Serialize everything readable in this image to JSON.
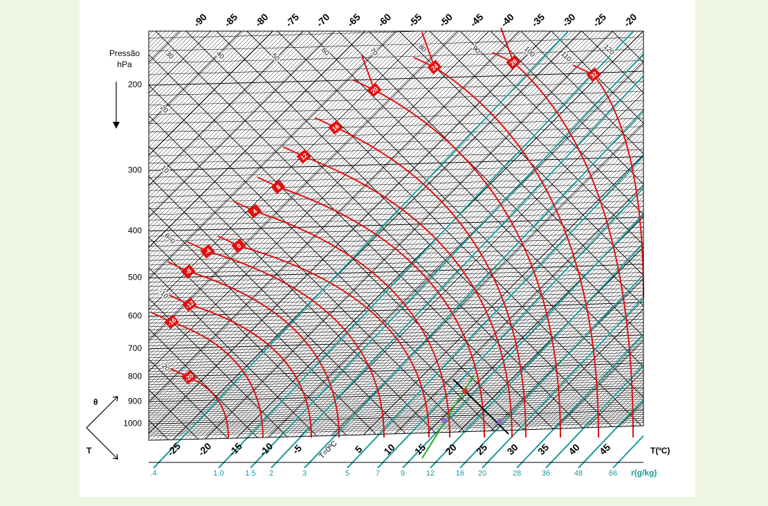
{
  "axis": {
    "title": "Pressão",
    "unit": "hPa",
    "pressures": [
      200,
      300,
      400,
      500,
      600,
      700,
      800,
      900,
      1000
    ],
    "top_temperatures": [
      -90,
      -85,
      -80,
      -75,
      -70,
      -65,
      -60,
      -55,
      -50,
      -45,
      -40,
      -35,
      -30,
      -25,
      -20
    ],
    "bottom_temperatures": [
      "-25",
      "-20",
      "-15",
      "-10",
      "-5",
      "T=0ºC",
      "5",
      "10",
      "15",
      "20",
      "25",
      "30",
      "35",
      "40",
      "45"
    ],
    "temperature_unit": "T(ºC)",
    "mixing_ratios": [
      ".4",
      "1.0",
      "1.5",
      "2",
      "3",
      "5",
      "7",
      "9",
      "12",
      "16",
      "20",
      "28",
      "36",
      "48",
      "66"
    ],
    "mixing_ratio_unit": "r(g/kg)"
  },
  "theta_labels_top": [
    30,
    40,
    50,
    60,
    70,
    80,
    90,
    100,
    110,
    120
  ],
  "theta_labels_left": [
    "20",
    "10",
    "θ=0",
    "-10",
    "-20"
  ],
  "wet_adiabats": [
    -20,
    -16,
    -12,
    -8,
    -4,
    0,
    4,
    8,
    12,
    16,
    20,
    24,
    28,
    32
  ],
  "legend": {
    "theta": "θ",
    "temperature": "T"
  }
}
